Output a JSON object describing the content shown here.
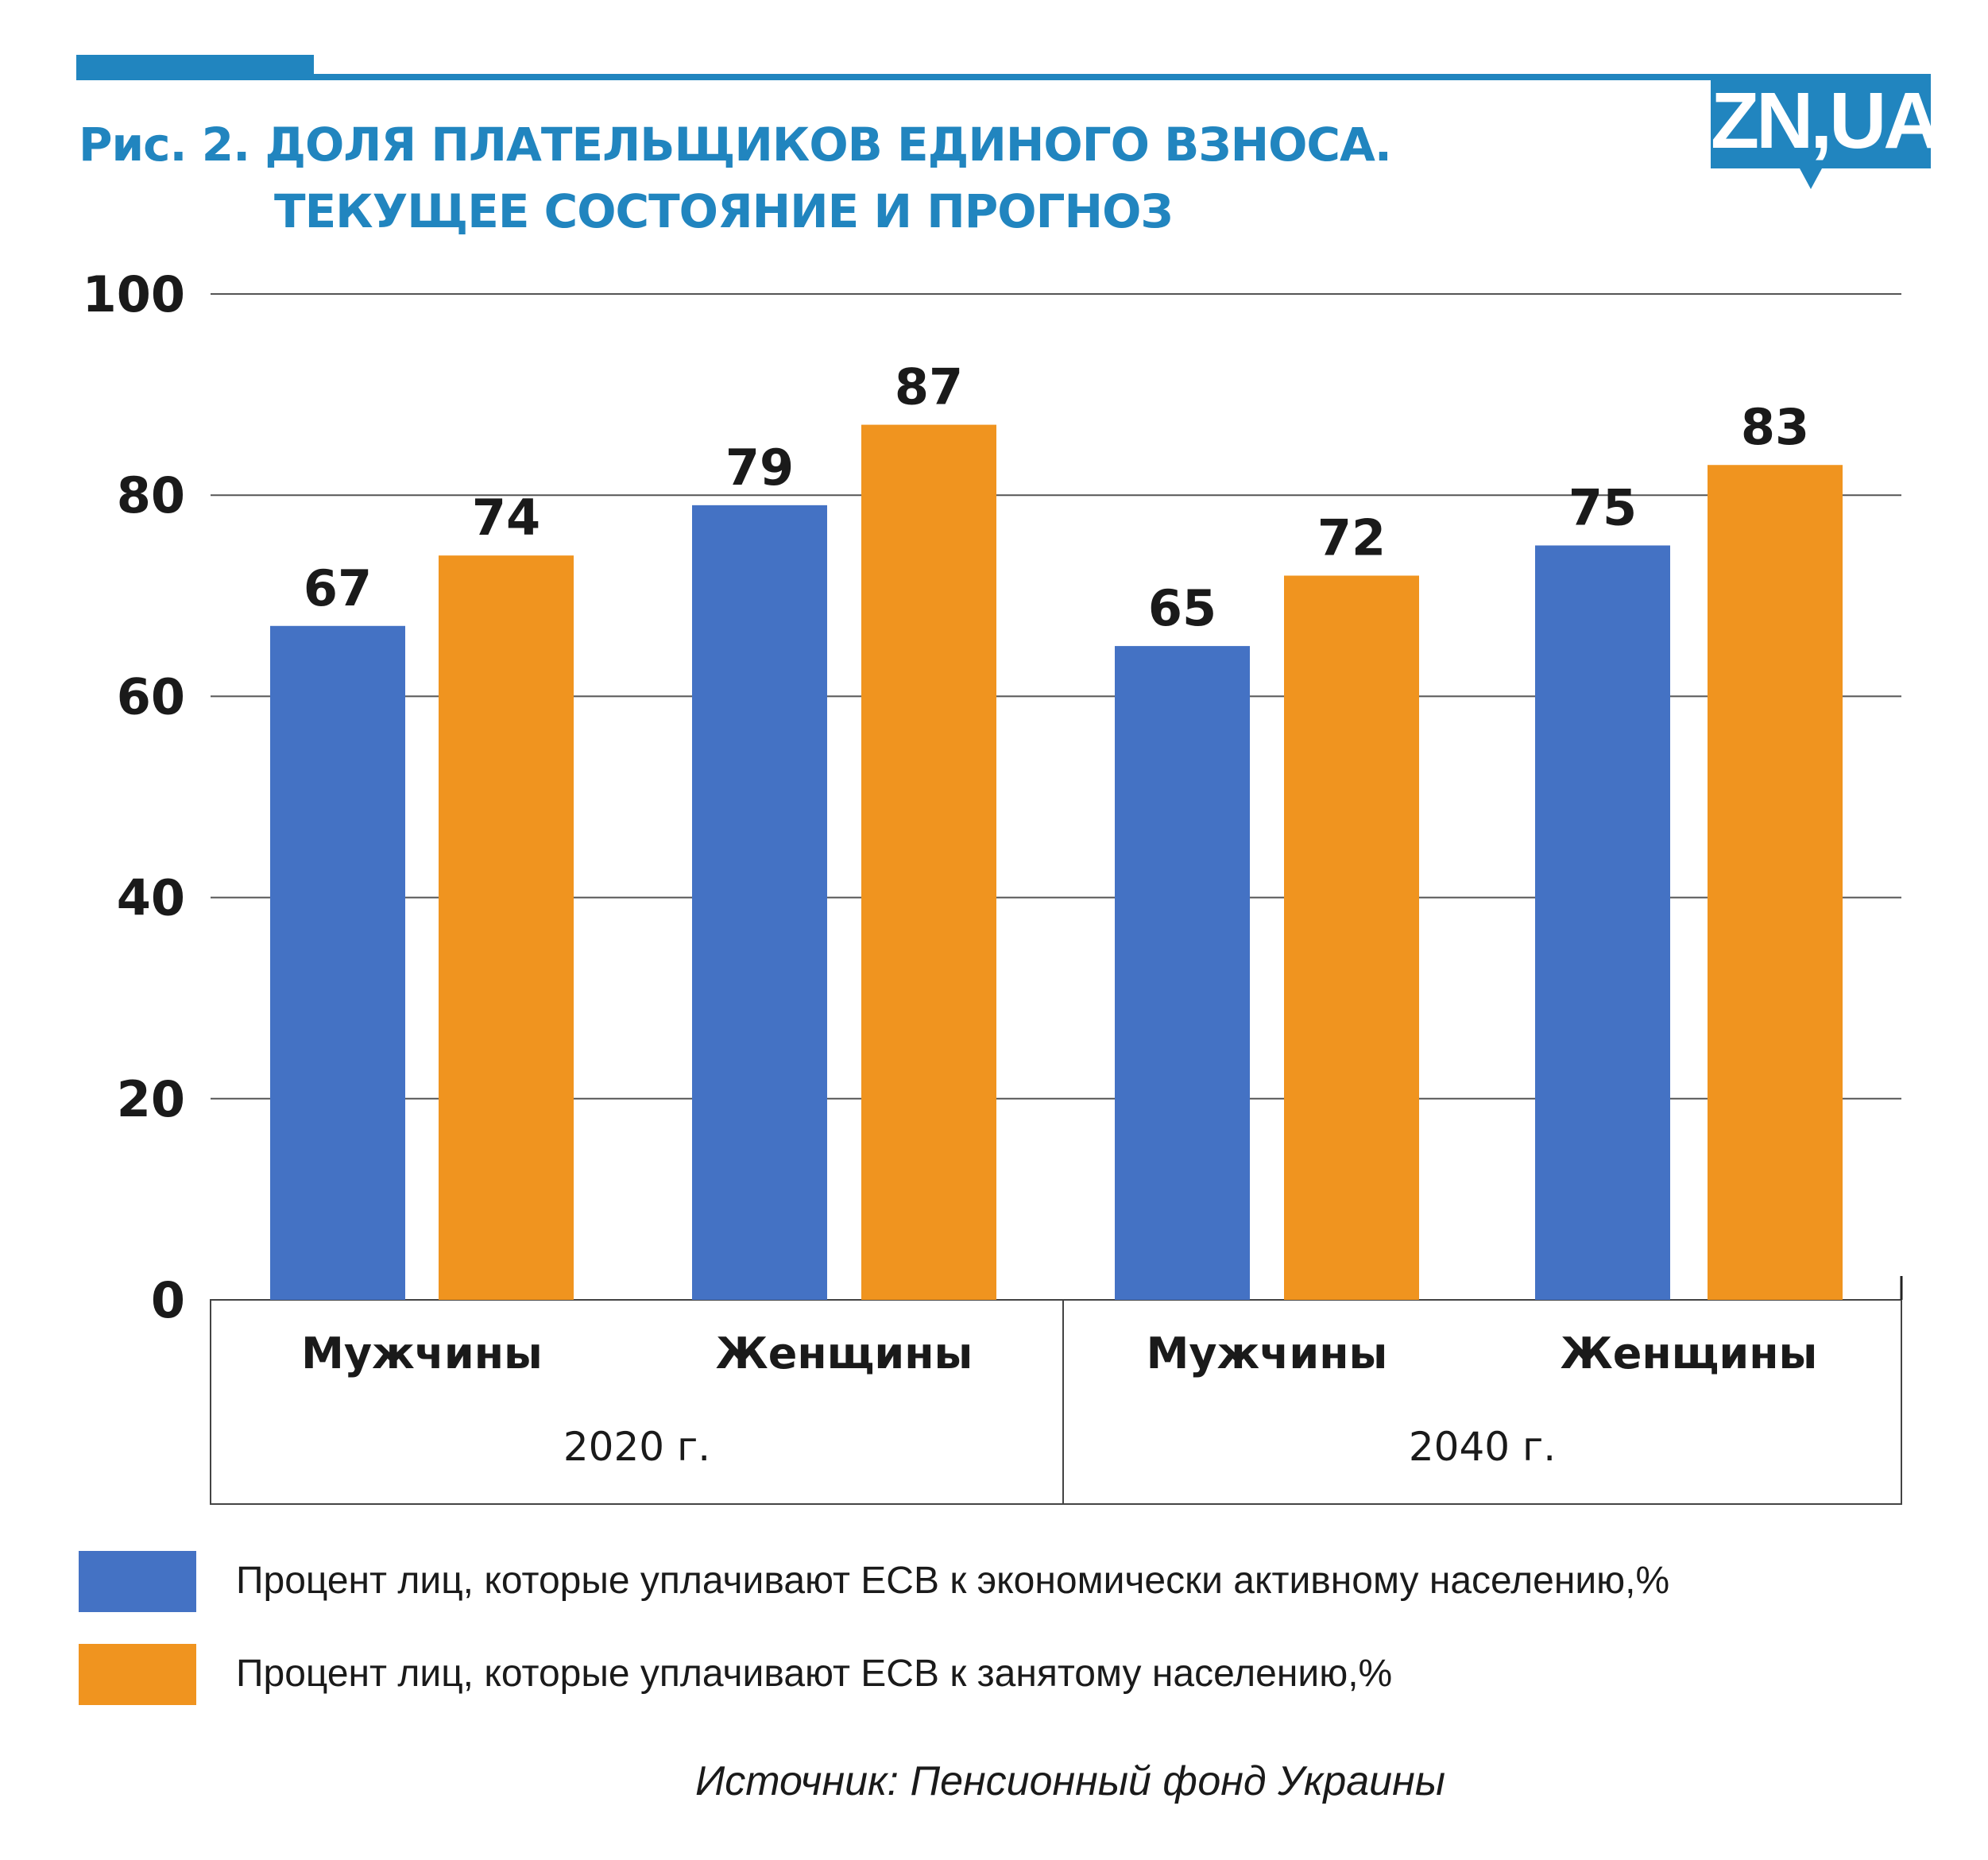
{
  "header": {
    "title_line1": "Рис. 2. ДОЛЯ ПЛАТЕЛЬЩИКОВ ЕДИНОГО ВЗНОСА.",
    "title_line2": "ТЕКУЩЕЕ СОСТОЯНИЕ И ПРОГНОЗ",
    "logo": "ZN,UA",
    "brand_color": "#2185bf"
  },
  "chart_data": {
    "type": "bar",
    "title": "Рис. 2. ДОЛЯ ПЛАТЕЛЬЩИКОВ ЕДИНОГО ВЗНОСА. ТЕКУЩЕЕ СОСТОЯНИЕ И ПРОГНОЗ",
    "groups": [
      {
        "label": "2020 г.",
        "categories": [
          "Мужчины",
          "Женщины"
        ]
      },
      {
        "label": "2040 г.",
        "categories": [
          "Мужчины",
          "Женщины"
        ]
      }
    ],
    "categories": [
      "Мужчины 2020 г.",
      "Женщины 2020 г.",
      "Мужчины 2040 г.",
      "Женщины 2040 г."
    ],
    "series": [
      {
        "name": "Процент лиц, которые уплачивают ЕСВ к экономически активному населению,%",
        "color": "#4472c4",
        "values": [
          67,
          79,
          65,
          75
        ]
      },
      {
        "name": "Процент лиц, которые уплачивают ЕСВ к занятому населению,%",
        "color": "#f0941f",
        "values": [
          74,
          87,
          72,
          83
        ]
      }
    ],
    "ylim": [
      0,
      100
    ],
    "yticks": [
      0,
      20,
      40,
      60,
      80,
      100
    ],
    "grid": true,
    "data_labels": true,
    "legend_position": "bottom-left"
  },
  "source": "Источник: Пенсионный фонд Украины"
}
